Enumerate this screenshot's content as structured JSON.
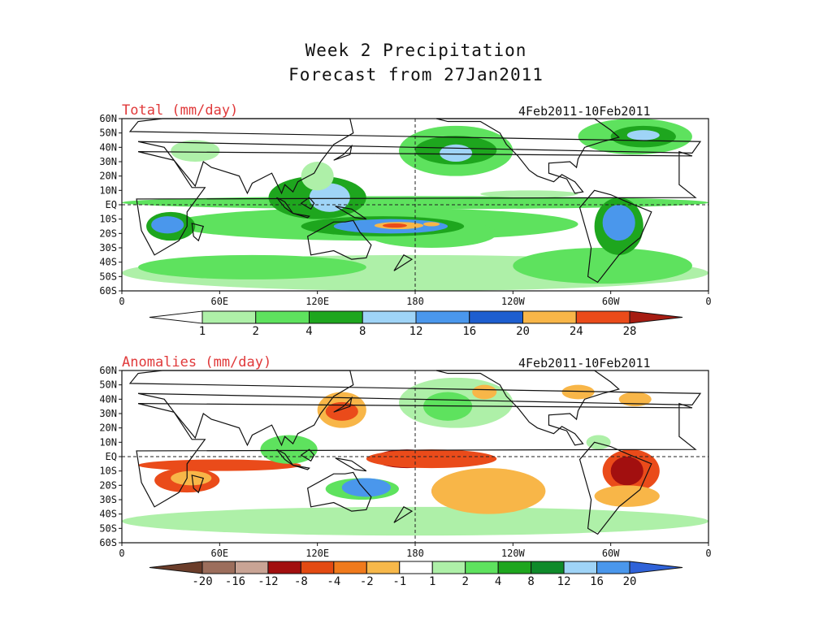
{
  "title": {
    "line1": "Week 2 Precipitation",
    "line2": "Forecast from 27Jan2011"
  },
  "panels": [
    {
      "label": "Total (mm/day)",
      "date_range": "4Feb2011-10Feb2011",
      "colorbar": {
        "levels": [
          "1",
          "2",
          "4",
          "8",
          "12",
          "16",
          "20",
          "24",
          "28"
        ],
        "colors": [
          "#ffffff",
          "#aef0a8",
          "#5ee25e",
          "#1ea61e",
          "#9fd4f7",
          "#4a97ec",
          "#1d5ecf",
          "#f8b648",
          "#ea4b1a",
          "#a61c12"
        ]
      }
    },
    {
      "label": "Anomalies (mm/day)",
      "date_range": "4Feb2011-10Feb2011",
      "colorbar": {
        "levels": [
          "-20",
          "-16",
          "-12",
          "-8",
          "-4",
          "-2",
          "-1",
          "1",
          "2",
          "4",
          "8",
          "12",
          "16",
          "20"
        ],
        "colors": [
          "#6b3d2a",
          "#9c6e5c",
          "#c9a495",
          "#a20f0f",
          "#e34a12",
          "#f07a1c",
          "#f7b84a",
          "#ffffff",
          "#aef0a8",
          "#5ee25e",
          "#1ea61e",
          "#0f8a2a",
          "#9fd4f7",
          "#4a97ec",
          "#2f62d8"
        ]
      }
    }
  ],
  "axes": {
    "lat_labels": [
      "60N",
      "50N",
      "40N",
      "30N",
      "20N",
      "10N",
      "EQ",
      "10S",
      "20S",
      "30S",
      "40S",
      "50S",
      "60S"
    ],
    "lon_labels": [
      "0",
      "60E",
      "120E",
      "180",
      "120W",
      "60W",
      "0"
    ]
  }
}
